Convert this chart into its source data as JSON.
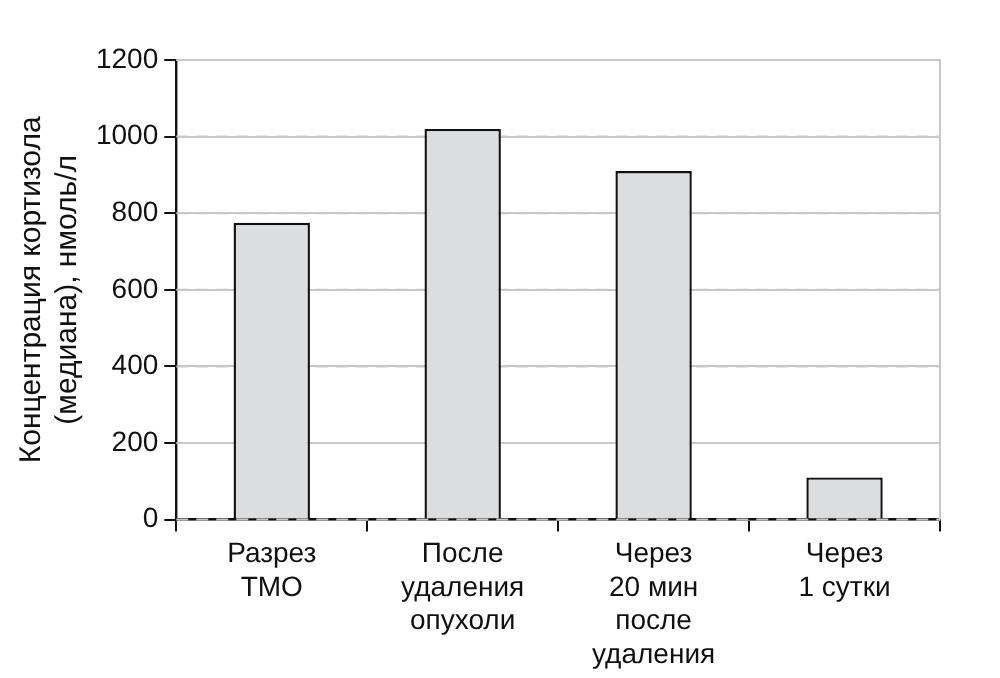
{
  "chart_data": {
    "type": "bar",
    "ylabel": "Концентрация кортизола\n(медиана), нмоль/л",
    "categories": [
      "Разрез\nТМО",
      "После\nудаления\nопухоли",
      "Через\n20 мин\nпосле\nудаления",
      "Через\n1 сутки"
    ],
    "values": [
      775,
      1020,
      910,
      110
    ],
    "color": "#dcdddf",
    "ylim": [
      0,
      1200
    ],
    "yticks": [
      0,
      200,
      400,
      600,
      800,
      1000,
      1200
    ],
    "grid": "y",
    "legend": false
  }
}
